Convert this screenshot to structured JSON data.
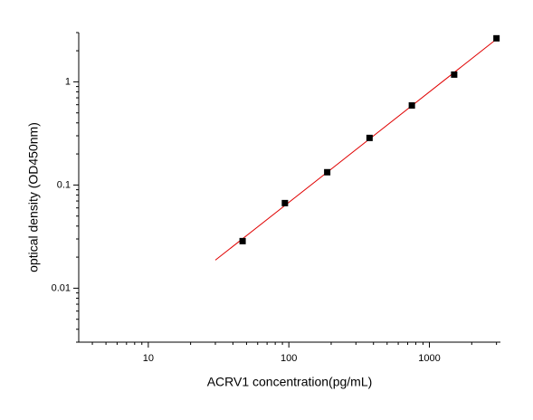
{
  "chart_data": {
    "type": "scatter",
    "x_label": "ACRV1 concentration(pg/mL)",
    "y_label": "optical density (OD450nm)",
    "x": [
      46.875,
      93.75,
      187.5,
      375,
      750,
      1500,
      3000
    ],
    "values": [
      0.0286,
      0.0668,
      0.133,
      0.286,
      0.59,
      1.175,
      2.64
    ],
    "color": "#000000",
    "fit": {
      "x": [
        30,
        3000
      ],
      "values": [
        0.0187,
        2.59
      ],
      "color": "#e00000"
    },
    "xscale": "log",
    "yscale": "log",
    "xlim": [
      3.2,
      3200
    ],
    "ylim": [
      0.003,
      3
    ],
    "xticks": [
      10,
      100,
      1000
    ],
    "yticks": [
      0.01,
      0.1,
      1
    ]
  }
}
